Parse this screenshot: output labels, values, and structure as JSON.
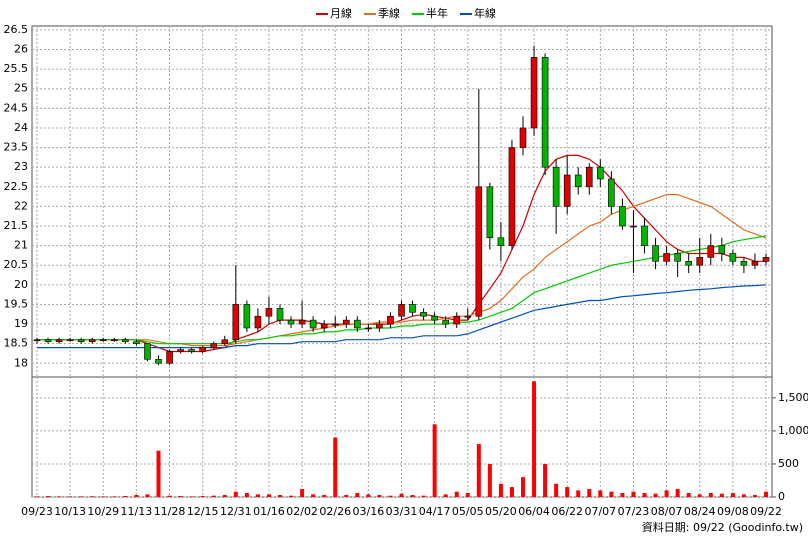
{
  "chart_data": {
    "type": "candlestick",
    "legend_position": "top",
    "grid": true,
    "categories": [
      "09/23",
      null,
      null,
      "10/13",
      null,
      null,
      "10/29",
      null,
      null,
      "11/13",
      null,
      null,
      "11/28",
      null,
      null,
      "12/15",
      null,
      null,
      "12/31",
      null,
      null,
      "01/16",
      null,
      null,
      "02/02",
      null,
      null,
      "02/26",
      null,
      null,
      "03/16",
      null,
      null,
      "03/31",
      null,
      null,
      "04/17",
      null,
      null,
      "05/05",
      null,
      null,
      "05/20",
      null,
      null,
      "06/04",
      null,
      null,
      "06/22",
      null,
      null,
      "07/07",
      null,
      null,
      "07/23",
      null,
      null,
      "08/07",
      null,
      null,
      "08/24",
      null,
      null,
      "09/08",
      null,
      null,
      "09/22"
    ],
    "open": [
      18.6,
      18.6,
      18.55,
      18.6,
      18.6,
      18.55,
      18.6,
      18.6,
      18.6,
      18.55,
      18.5,
      18.1,
      18.0,
      18.3,
      18.35,
      18.3,
      18.4,
      18.5,
      18.6,
      19.5,
      18.9,
      19.2,
      19.4,
      19.1,
      19.0,
      19.1,
      18.9,
      19.0,
      19.0,
      19.1,
      18.9,
      18.9,
      19.0,
      19.2,
      19.5,
      19.3,
      19.2,
      19.1,
      19.0,
      19.2,
      19.2,
      22.5,
      21.2,
      21.0,
      23.5,
      24.0,
      25.8,
      23.0,
      22.0,
      22.8,
      22.5,
      23.0,
      22.7,
      22.0,
      21.5,
      21.5,
      21.0,
      20.6,
      20.8,
      20.6,
      20.5,
      20.7,
      21.0,
      20.8,
      20.6,
      20.5,
      20.6
    ],
    "high": [
      18.65,
      18.65,
      18.65,
      18.65,
      18.65,
      18.65,
      18.65,
      18.65,
      18.65,
      18.6,
      18.5,
      18.2,
      18.35,
      18.4,
      18.4,
      18.45,
      18.55,
      18.7,
      20.5,
      19.6,
      19.4,
      19.7,
      19.5,
      19.2,
      19.6,
      19.2,
      19.1,
      19.2,
      19.2,
      19.2,
      19.0,
      19.1,
      19.3,
      19.6,
      19.6,
      19.4,
      19.3,
      19.2,
      19.3,
      19.4,
      25.0,
      22.6,
      21.6,
      23.7,
      24.3,
      26.1,
      25.9,
      23.2,
      23.3,
      23.0,
      23.1,
      23.2,
      22.9,
      22.2,
      21.9,
      21.7,
      21.2,
      21.0,
      20.9,
      20.8,
      21.2,
      21.3,
      21.2,
      20.9,
      20.7,
      20.8,
      20.8
    ],
    "low": [
      18.5,
      18.5,
      18.5,
      18.55,
      18.5,
      18.5,
      18.55,
      18.55,
      18.5,
      18.45,
      18.05,
      17.95,
      17.95,
      18.25,
      18.25,
      18.25,
      18.35,
      18.45,
      18.5,
      18.8,
      18.8,
      19.0,
      19.0,
      18.9,
      18.9,
      18.8,
      18.8,
      18.9,
      18.9,
      18.8,
      18.8,
      18.8,
      18.9,
      19.1,
      19.2,
      19.1,
      19.0,
      18.9,
      18.9,
      19.1,
      19.1,
      20.9,
      20.6,
      20.9,
      23.3,
      23.8,
      22.8,
      21.3,
      21.8,
      22.3,
      22.3,
      22.5,
      21.8,
      21.4,
      20.3,
      20.8,
      20.4,
      20.5,
      20.2,
      20.3,
      20.3,
      20.5,
      20.6,
      20.5,
      20.3,
      20.4,
      20.5
    ],
    "close": [
      18.6,
      18.55,
      18.6,
      18.6,
      18.55,
      18.6,
      18.6,
      18.6,
      18.55,
      18.5,
      18.1,
      18.0,
      18.3,
      18.35,
      18.3,
      18.4,
      18.5,
      18.6,
      19.5,
      18.9,
      19.2,
      19.4,
      19.1,
      19.0,
      19.1,
      18.9,
      19.0,
      19.0,
      19.1,
      18.9,
      18.9,
      19.0,
      19.2,
      19.5,
      19.3,
      19.2,
      19.1,
      19.0,
      19.2,
      19.2,
      22.5,
      21.2,
      21.0,
      23.5,
      24.0,
      25.8,
      23.0,
      22.0,
      22.8,
      22.5,
      23.0,
      22.7,
      22.0,
      21.5,
      21.5,
      21.0,
      20.6,
      20.8,
      20.6,
      20.5,
      20.7,
      21.0,
      20.8,
      20.6,
      20.5,
      20.6,
      20.7
    ],
    "up_color": "#e00000",
    "down_color": "#00b400",
    "series": [
      {
        "name": "月線",
        "color": "#cc0000",
        "values": [
          18.6,
          18.6,
          18.6,
          18.6,
          18.6,
          18.6,
          18.6,
          18.6,
          18.6,
          18.6,
          18.5,
          18.4,
          18.3,
          18.3,
          18.3,
          18.3,
          18.35,
          18.4,
          18.6,
          18.7,
          18.8,
          19.0,
          19.1,
          19.1,
          19.1,
          19.05,
          19.0,
          19.0,
          19.0,
          19.0,
          19.0,
          19.0,
          19.0,
          19.1,
          19.2,
          19.25,
          19.2,
          19.15,
          19.1,
          19.1,
          19.5,
          19.9,
          20.3,
          20.9,
          21.5,
          22.3,
          22.9,
          23.2,
          23.3,
          23.3,
          23.2,
          23.0,
          22.7,
          22.4,
          22.0,
          21.7,
          21.4,
          21.1,
          20.9,
          20.8,
          20.8,
          20.8,
          20.8,
          20.7,
          20.7,
          20.6,
          20.6
        ]
      },
      {
        "name": "季線",
        "color": "#e07020",
        "values": [
          18.6,
          18.6,
          18.6,
          18.6,
          18.6,
          18.6,
          18.6,
          18.6,
          18.6,
          18.6,
          18.6,
          18.55,
          18.5,
          18.5,
          18.45,
          18.45,
          18.45,
          18.45,
          18.5,
          18.55,
          18.6,
          18.65,
          18.7,
          18.75,
          18.8,
          18.85,
          18.9,
          18.95,
          19.0,
          19.0,
          19.0,
          19.05,
          19.05,
          19.05,
          19.1,
          19.1,
          19.1,
          19.15,
          19.2,
          19.2,
          19.3,
          19.4,
          19.6,
          19.9,
          20.2,
          20.4,
          20.7,
          20.9,
          21.1,
          21.3,
          21.5,
          21.6,
          21.8,
          21.9,
          22.0,
          22.1,
          22.2,
          22.3,
          22.3,
          22.2,
          22.1,
          22.0,
          21.8,
          21.6,
          21.4,
          21.3,
          21.2
        ]
      },
      {
        "name": "半年",
        "color": "#00cc00",
        "values": [
          18.6,
          18.6,
          18.6,
          18.6,
          18.6,
          18.6,
          18.6,
          18.6,
          18.6,
          18.6,
          18.55,
          18.5,
          18.5,
          18.5,
          18.5,
          18.5,
          18.5,
          18.5,
          18.55,
          18.6,
          18.6,
          18.65,
          18.7,
          18.7,
          18.75,
          18.75,
          18.8,
          18.8,
          18.85,
          18.85,
          18.9,
          18.9,
          18.9,
          18.95,
          18.95,
          19.0,
          19.0,
          19.0,
          19.05,
          19.05,
          19.1,
          19.2,
          19.3,
          19.4,
          19.6,
          19.8,
          19.9,
          20.0,
          20.1,
          20.2,
          20.3,
          20.4,
          20.5,
          20.55,
          20.6,
          20.65,
          20.7,
          20.75,
          20.8,
          20.85,
          20.9,
          20.95,
          21.0,
          21.1,
          21.15,
          21.2,
          21.25
        ]
      },
      {
        "name": "年線",
        "color": "#0050c0",
        "values": [
          18.4,
          18.4,
          18.4,
          18.4,
          18.4,
          18.4,
          18.4,
          18.4,
          18.4,
          18.4,
          18.4,
          18.4,
          18.4,
          18.4,
          18.4,
          18.4,
          18.4,
          18.4,
          18.45,
          18.45,
          18.5,
          18.5,
          18.5,
          18.5,
          18.55,
          18.55,
          18.55,
          18.55,
          18.6,
          18.6,
          18.6,
          18.6,
          18.65,
          18.65,
          18.65,
          18.7,
          18.7,
          18.7,
          18.7,
          18.75,
          18.85,
          18.95,
          19.05,
          19.15,
          19.25,
          19.35,
          19.4,
          19.45,
          19.5,
          19.55,
          19.6,
          19.6,
          19.65,
          19.7,
          19.72,
          19.75,
          19.78,
          19.8,
          19.83,
          19.86,
          19.88,
          19.9,
          19.93,
          19.95,
          19.97,
          19.98,
          20.0
        ]
      }
    ],
    "ylim": [
      17.65,
      26.6
    ],
    "yticks": [
      18,
      18.5,
      19,
      19.5,
      20,
      20.5,
      21,
      21.5,
      22,
      22.5,
      23,
      23.5,
      24,
      24.5,
      25,
      25.5,
      26,
      26.5
    ],
    "volume": {
      "color": "#ff0000",
      "ylim": [
        0,
        1800
      ],
      "values": [
        10,
        15,
        10,
        10,
        10,
        12,
        10,
        10,
        15,
        30,
        40,
        700,
        20,
        15,
        10,
        15,
        20,
        30,
        80,
        60,
        40,
        40,
        30,
        20,
        120,
        40,
        30,
        900,
        30,
        60,
        40,
        30,
        20,
        50,
        30,
        20,
        1100,
        40,
        80,
        60,
        800,
        500,
        200,
        150,
        300,
        1750,
        500,
        200,
        150,
        100,
        120,
        100,
        80,
        60,
        80,
        60,
        50,
        100,
        120,
        60,
        40,
        60,
        50,
        60,
        40,
        30,
        80
      ],
      "yticks": [
        0,
        500,
        {
          "value": 1000,
          "label": "1,000"
        },
        {
          "value": 1500,
          "label": "1,500"
        }
      ]
    },
    "footer": "資料日期: 09/22  (Goodinfo.tw)"
  }
}
